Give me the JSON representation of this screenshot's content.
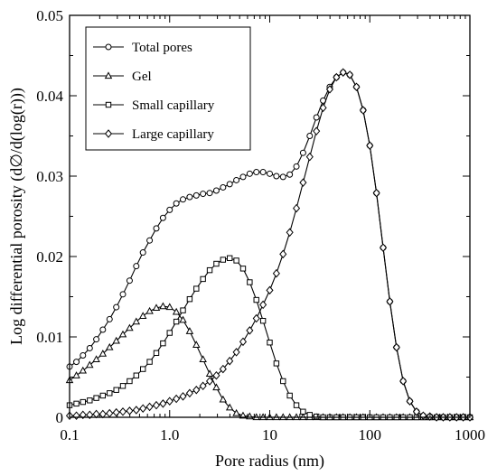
{
  "chart_data": {
    "type": "line",
    "title": "",
    "xlabel": "Pore radius (nm)",
    "ylabel": "Log differential porosity (d∅/d(log(r)))",
    "x_scale": "log",
    "xlim": [
      0.1,
      1000
    ],
    "ylim": [
      0,
      0.05
    ],
    "grid": false,
    "legend_position": "top-left",
    "x_tick_labels": [
      "0.1",
      "1.0",
      "10",
      "100",
      "1000"
    ],
    "y_tick_labels": [
      "0",
      "0.01",
      "0.02",
      "0.03",
      "0.04",
      "0.05"
    ],
    "line_color": "#000000",
    "series": [
      {
        "name": "Total pores",
        "marker": "circle",
        "x": [
          0.1,
          0.117,
          0.136,
          0.159,
          0.185,
          0.215,
          0.251,
          0.293,
          0.341,
          0.398,
          0.464,
          0.541,
          0.631,
          0.736,
          0.858,
          1.0,
          1.166,
          1.359,
          1.585,
          1.848,
          2.154,
          2.512,
          2.929,
          3.415,
          3.981,
          4.642,
          5.412,
          6.31,
          7.356,
          8.577,
          10.0,
          11.66,
          13.59,
          15.85,
          18.48,
          21.54,
          25.12,
          29.29,
          34.15,
          39.81,
          46.42,
          54.12,
          63.1,
          73.56,
          85.77,
          100.0,
          116.6,
          135.9,
          158.5,
          184.8,
          215.4,
          251.2,
          292.9,
          341.5,
          398.1,
          464.2,
          541.2,
          631.0,
          735.6,
          857.7,
          1000.0
        ],
        "y": [
          0.0063,
          0.0069,
          0.0077,
          0.0086,
          0.0097,
          0.0109,
          0.0122,
          0.0137,
          0.0153,
          0.017,
          0.0188,
          0.0205,
          0.022,
          0.0235,
          0.0248,
          0.0258,
          0.0266,
          0.0271,
          0.0274,
          0.0276,
          0.0278,
          0.0279,
          0.0282,
          0.0286,
          0.029,
          0.0295,
          0.0299,
          0.0303,
          0.0305,
          0.0305,
          0.0303,
          0.03,
          0.0299,
          0.0302,
          0.0312,
          0.0329,
          0.035,
          0.0373,
          0.0394,
          0.0411,
          0.0423,
          0.0429,
          0.0426,
          0.0411,
          0.0382,
          0.0338,
          0.0279,
          0.0211,
          0.0144,
          0.0087,
          0.0045,
          0.002,
          0.0007,
          0.0002,
          0.0001,
          0.0,
          0.0,
          0.0,
          0.0,
          0.0,
          0.0
        ]
      },
      {
        "name": "Gel",
        "marker": "triangle",
        "x": [
          0.1,
          0.117,
          0.136,
          0.159,
          0.185,
          0.215,
          0.251,
          0.293,
          0.341,
          0.398,
          0.464,
          0.541,
          0.631,
          0.736,
          0.858,
          1.0,
          1.166,
          1.359,
          1.585,
          1.848,
          2.154,
          2.512,
          2.929,
          3.415,
          3.981,
          4.642,
          5.412,
          6.31,
          7.356,
          8.577,
          10.0,
          11.66,
          13.59,
          15.85,
          18.48,
          21.54,
          25.12,
          29.29,
          34.15,
          39.81,
          46.42,
          54.12,
          63.1,
          73.56,
          85.77,
          100.0,
          116.6,
          135.9,
          158.5,
          184.8,
          215.4,
          251.2,
          292.9,
          341.5,
          398.1,
          464.2,
          541.2,
          631.0,
          735.6,
          857.7,
          1000.0
        ],
        "y": [
          0.0046,
          0.0052,
          0.0058,
          0.0065,
          0.0072,
          0.0079,
          0.0087,
          0.0095,
          0.0103,
          0.0111,
          0.0119,
          0.0126,
          0.0132,
          0.0136,
          0.0138,
          0.0137,
          0.0131,
          0.0121,
          0.0107,
          0.009,
          0.0072,
          0.0054,
          0.0037,
          0.0022,
          0.0012,
          0.0005,
          0.0002,
          0.0001,
          0.0,
          0.0,
          0.0,
          0.0,
          0.0,
          0.0,
          0.0,
          0.0,
          0.0,
          0.0,
          0.0,
          0.0,
          0.0,
          0.0,
          0.0,
          0.0,
          0.0,
          0.0,
          0.0,
          0.0,
          0.0,
          0.0,
          0.0,
          0.0,
          0.0,
          0.0,
          0.0,
          0.0,
          0.0,
          0.0,
          0.0,
          0.0,
          0.0
        ]
      },
      {
        "name": "Small capillary",
        "marker": "square",
        "x": [
          0.1,
          0.117,
          0.136,
          0.159,
          0.185,
          0.215,
          0.251,
          0.293,
          0.341,
          0.398,
          0.464,
          0.541,
          0.631,
          0.736,
          0.858,
          1.0,
          1.166,
          1.359,
          1.585,
          1.848,
          2.154,
          2.512,
          2.929,
          3.415,
          3.981,
          4.642,
          5.412,
          6.31,
          7.356,
          8.577,
          10.0,
          11.66,
          13.59,
          15.85,
          18.48,
          21.54,
          25.12,
          29.29,
          34.15,
          39.81,
          46.42,
          54.12,
          63.1,
          73.56,
          85.77,
          100.0,
          116.6,
          135.9,
          158.5,
          184.8,
          215.4,
          251.2,
          292.9,
          341.5,
          398.1,
          464.2,
          541.2,
          631.0,
          735.6,
          857.7,
          1000.0
        ],
        "y": [
          0.0015,
          0.0017,
          0.0019,
          0.0021,
          0.0024,
          0.0027,
          0.003,
          0.0034,
          0.0039,
          0.0045,
          0.0052,
          0.006,
          0.0069,
          0.008,
          0.0092,
          0.0105,
          0.0119,
          0.0133,
          0.0147,
          0.016,
          0.0172,
          0.0183,
          0.0191,
          0.0196,
          0.0198,
          0.0195,
          0.0185,
          0.0168,
          0.0146,
          0.012,
          0.0093,
          0.0067,
          0.0045,
          0.0027,
          0.0015,
          0.0007,
          0.0003,
          0.0001,
          0.0,
          0.0,
          0.0,
          0.0,
          0.0,
          0.0,
          0.0,
          0.0,
          0.0,
          0.0,
          0.0,
          0.0,
          0.0,
          0.0,
          0.0,
          0.0,
          0.0,
          0.0,
          0.0,
          0.0,
          0.0,
          0.0,
          0.0
        ]
      },
      {
        "name": "Large capillary",
        "marker": "diamond",
        "x": [
          0.1,
          0.117,
          0.136,
          0.159,
          0.185,
          0.215,
          0.251,
          0.293,
          0.341,
          0.398,
          0.464,
          0.541,
          0.631,
          0.736,
          0.858,
          1.0,
          1.166,
          1.359,
          1.585,
          1.848,
          2.154,
          2.512,
          2.929,
          3.415,
          3.981,
          4.642,
          5.412,
          6.31,
          7.356,
          8.577,
          10.0,
          11.66,
          13.59,
          15.85,
          18.48,
          21.54,
          25.12,
          29.29,
          34.15,
          39.81,
          46.42,
          54.12,
          63.1,
          73.56,
          85.77,
          100.0,
          116.6,
          135.9,
          158.5,
          184.8,
          215.4,
          251.2,
          292.9,
          341.5,
          398.1,
          464.2,
          541.2,
          631.0,
          735.6,
          857.7,
          1000.0
        ],
        "y": [
          0.0002,
          0.0002,
          0.0003,
          0.0003,
          0.0004,
          0.0004,
          0.0005,
          0.0006,
          0.0007,
          0.0008,
          0.0009,
          0.0011,
          0.0013,
          0.0015,
          0.0017,
          0.002,
          0.0023,
          0.0026,
          0.003,
          0.0034,
          0.0039,
          0.0045,
          0.0052,
          0.006,
          0.007,
          0.0081,
          0.0094,
          0.0108,
          0.0123,
          0.014,
          0.0158,
          0.0179,
          0.0203,
          0.023,
          0.026,
          0.0292,
          0.0324,
          0.0356,
          0.0385,
          0.0408,
          0.0423,
          0.0429,
          0.0426,
          0.0411,
          0.0382,
          0.0338,
          0.0279,
          0.0211,
          0.0144,
          0.0087,
          0.0045,
          0.002,
          0.0007,
          0.0002,
          0.0001,
          0.0,
          0.0,
          0.0,
          0.0,
          0.0,
          0.0
        ]
      }
    ]
  }
}
